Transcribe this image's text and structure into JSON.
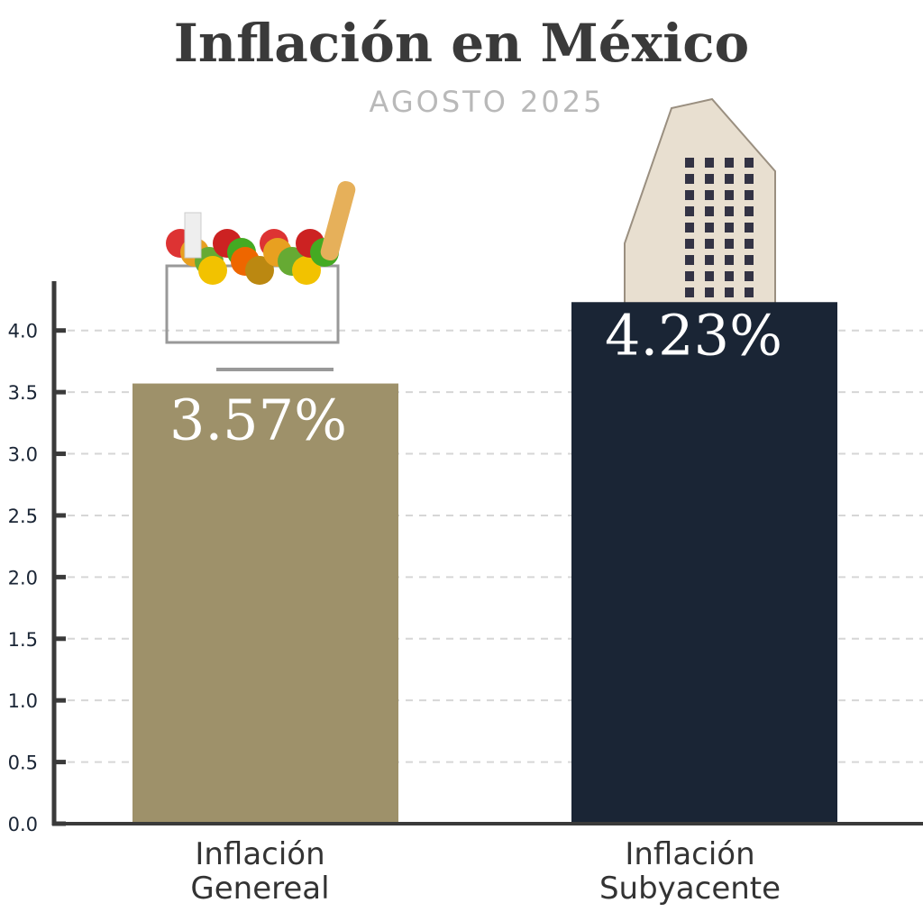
{
  "chart_data": {
    "type": "bar",
    "title": "Inflación en México",
    "subtitle": "AGOSTO 2025",
    "categories": [
      [
        "Inflación",
        "Genereal"
      ],
      [
        "Inflación",
        "Subyacente"
      ]
    ],
    "values": [
      3.57,
      4.23
    ],
    "data_labels": [
      "3.57%",
      "4.23%"
    ],
    "colors": [
      "#9e916a",
      "#1a2535"
    ],
    "ylim": [
      0,
      4.4
    ],
    "yticks": [
      0.0,
      0.5,
      1.0,
      1.5,
      2.0,
      2.5,
      3.0,
      3.5,
      4.0
    ],
    "ytick_labels": [
      "0.0",
      "0.5",
      "1.0",
      "1.5",
      "2.0",
      "2.5",
      "3.0",
      "3.5",
      "4.0"
    ],
    "grid": "horizontal dashed",
    "icons": [
      "shopping-cart-with-groceries",
      "building"
    ]
  }
}
